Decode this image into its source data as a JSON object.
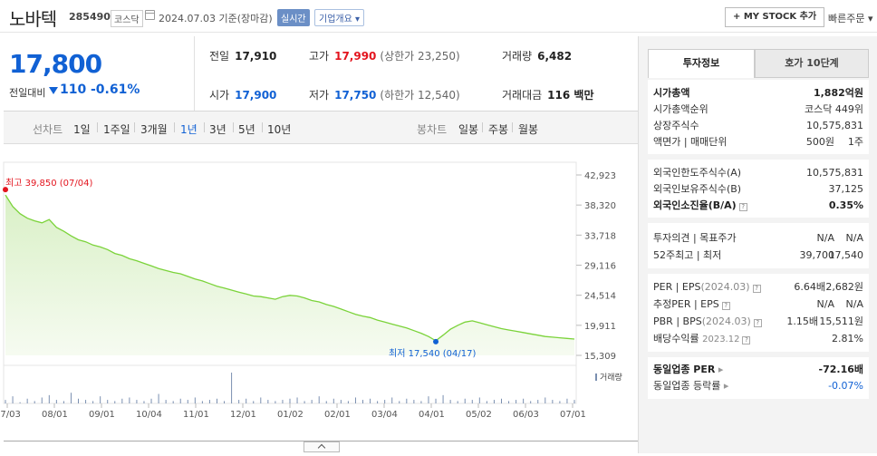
{
  "header": {
    "name": "노바텍",
    "code": "285490",
    "market": "코스닥",
    "date": "2024.07.03 기준(장마감)",
    "realtime": "실시간",
    "company": "기업개요 ▾",
    "mystock": "+ MY STOCK 추가",
    "quick": "빠른주문 ▾"
  },
  "price": {
    "current": "17,800",
    "compare_label": "전일대비",
    "change": "110",
    "pct": "-0.61%"
  },
  "stats": {
    "prev_label": "전일",
    "prev": "17,910",
    "high_label": "고가",
    "high": "17,990",
    "upper": "(상한가 23,250)",
    "vol_label": "거래량",
    "vol": "6,482",
    "open_label": "시가",
    "open": "17,900",
    "low_label": "저가",
    "low": "17,750",
    "lower": "(하한가 12,540)",
    "amt_label": "거래대금",
    "amt": "116 백만"
  },
  "periods": {
    "line_label": "선차트",
    "items": [
      "1일",
      "1주일",
      "3개월",
      "1년",
      "3년",
      "5년",
      "10년"
    ],
    "selected": "1년",
    "candle_label": "봉차트",
    "candle_items": [
      "일봉",
      "주봉",
      "월봉"
    ]
  },
  "chart_data": {
    "type": "area",
    "title": "",
    "y_ticks": [
      "42,923",
      "38,320",
      "33,718",
      "29,116",
      "24,514",
      "19,911",
      "15,309"
    ],
    "ylim": [
      15309,
      42923
    ],
    "x_ticks": [
      "07/03",
      "08/01",
      "09/01",
      "10/04",
      "11/01",
      "12/01",
      "01/02",
      "02/01",
      "03/04",
      "04/01",
      "05/02",
      "06/03",
      "07/01"
    ],
    "high_label": "최고 39,850 (07/04)",
    "low_label": "최저 17,540 (04/17)",
    "volume_label": "거래량",
    "values": [
      39850,
      38100,
      37000,
      36300,
      35900,
      35600,
      36100,
      34900,
      34300,
      33600,
      33000,
      32700,
      32200,
      31900,
      31500,
      30900,
      30600,
      30100,
      29800,
      29400,
      29000,
      28600,
      28300,
      28000,
      27800,
      27400,
      27000,
      26700,
      26300,
      25900,
      25600,
      25300,
      25000,
      24700,
      24400,
      24300,
      24100,
      23900,
      24300,
      24500,
      24400,
      24100,
      23700,
      23500,
      23100,
      22800,
      22400,
      22000,
      21600,
      21300,
      21100,
      20700,
      20400,
      20100,
      19800,
      19500,
      19100,
      18700,
      18200,
      17540,
      18400,
      19300,
      19900,
      20400,
      20600,
      20300,
      20000,
      19700,
      19400,
      19200,
      19000,
      18800,
      18600,
      18400,
      18200,
      18100,
      18000,
      17900,
      17800
    ],
    "volume": [
      3,
      6,
      1,
      4,
      2,
      5,
      7,
      3,
      2,
      9,
      4,
      3,
      2,
      6,
      3,
      2,
      4,
      5,
      3,
      2,
      4,
      8,
      3,
      2,
      4,
      3,
      5,
      2,
      3,
      4,
      2,
      26,
      3,
      4,
      2,
      5,
      3,
      2,
      3,
      4,
      5,
      2,
      3,
      6,
      2,
      4,
      3,
      2,
      5,
      3,
      4,
      2,
      3,
      5,
      2,
      4,
      3,
      2,
      6,
      4,
      7,
      3,
      2,
      4,
      3,
      5,
      2,
      3,
      4,
      2,
      3,
      4,
      2,
      3,
      5,
      3,
      2,
      4,
      3
    ]
  },
  "panel": {
    "tab_invest": "투자정보",
    "tab_order": "호가 10단계",
    "mcap_label": "시가총액",
    "mcap": "1,882억원",
    "rank_label": "시가총액순위",
    "rank": "코스닥 449위",
    "shares_label": "상장주식수",
    "shares": "10,575,831",
    "face_label": "액면가 | 매매단위",
    "face": "500원",
    "unit": "1주",
    "fl_limit_label": "외국인한도주식수(A)",
    "fl_limit": "10,575,831",
    "fl_hold_label": "외국인보유주식수(B)",
    "fl_hold": "37,125",
    "fl_ratio_label": "외국인소진율(B/A)",
    "fl_ratio": "0.35%",
    "opinion_label": "투자의견 | 목표주가",
    "opinion": "N/A",
    "target": "N/A",
    "w52_label": "52주최고 | 최저",
    "w52_high": "39,700",
    "w52_low": "17,540",
    "per_label": "PER | EPS",
    "per_year": "(2024.03)",
    "per": "6.64배",
    "eps": "2,682원",
    "est_label": "추정PER | EPS",
    "est_per": "N/A",
    "est_eps": "N/A",
    "pbr_label": "PBR | BPS",
    "pbr_year": "(2024.03)",
    "pbr": "1.15배",
    "bps": "15,511원",
    "div_label": "배당수익률",
    "div_year": "2023.12",
    "div": "2.81%",
    "sector_per_label": "동일업종 PER",
    "sector_per": "-72.16배",
    "sector_rate_label": "동일업종 등락률",
    "sector_rate": "-0.07%"
  },
  "colors": {
    "down": "#1161d4",
    "up": "#e3141e",
    "line": "#7bd33a",
    "fill": "#eaf7df"
  }
}
